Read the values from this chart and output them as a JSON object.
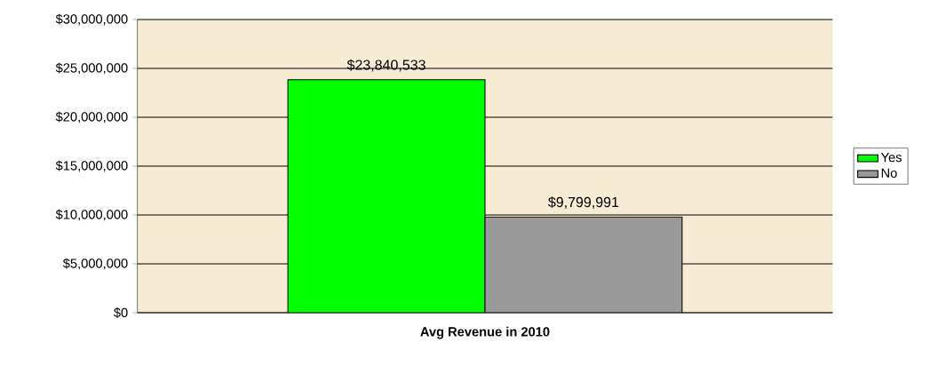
{
  "chart_data": {
    "type": "bar",
    "xlabel": "Avg Revenue in 2010",
    "categories": [
      null
    ],
    "series": [
      {
        "name": "Yes",
        "color": "#00ff00",
        "values": [
          23840533
        ],
        "value_labels": [
          "$23,840,533"
        ]
      },
      {
        "name": "No",
        "color": "#999999",
        "values": [
          9799991
        ],
        "value_labels": [
          "$9,799,991"
        ]
      }
    ],
    "ylim": [
      0,
      30000000
    ],
    "yticks": [
      {
        "value": 0,
        "label": "$0"
      },
      {
        "value": 5000000,
        "label": "$5,000,000"
      },
      {
        "value": 10000000,
        "label": "$10,000,000"
      },
      {
        "value": 15000000,
        "label": "$15,000,000"
      },
      {
        "value": 20000000,
        "label": "$20,000,000"
      },
      {
        "value": 25000000,
        "label": "$25,000,000"
      },
      {
        "value": 30000000,
        "label": "$30,000,000"
      }
    ],
    "grid": "y",
    "legend": "right"
  }
}
